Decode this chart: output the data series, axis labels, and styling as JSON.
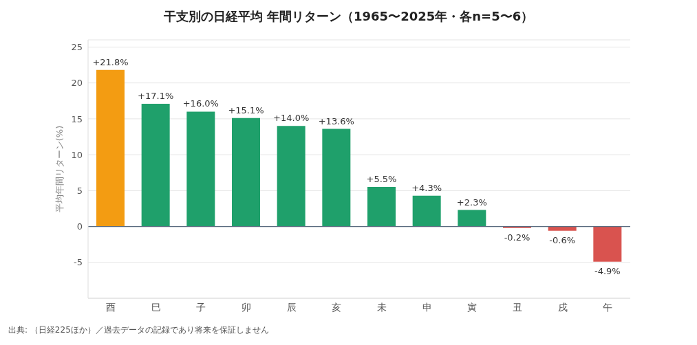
{
  "chart_data": {
    "type": "bar",
    "title": "干支別の日経平均 年間リターン（1965〜2025年・各n=5〜6）",
    "ylabel": "平均年間リターン(%)",
    "annotations": [
      "出典: （日経225ほか）／過去データの記録であり将来を保証しません"
    ],
    "categories": [
      "酉",
      "巳",
      "子",
      "卯",
      "辰",
      "亥",
      "未",
      "申",
      "寅",
      "丑",
      "戌",
      "午"
    ],
    "values": [
      21.8,
      17.1,
      16.0,
      15.1,
      14.0,
      13.6,
      5.5,
      4.3,
      2.3,
      -0.2,
      -0.6,
      -4.9
    ],
    "colors": [
      "#f39c12",
      "#1fa06b",
      "#1fa06b",
      "#1fa06b",
      "#1fa06b",
      "#1fa06b",
      "#1fa06b",
      "#1fa06b",
      "#1fa06b",
      "#d9534f",
      "#d9534f",
      "#d9534f"
    ],
    "value_labels": [
      "+21.8%",
      "+17.1%",
      "+16.0%",
      "+15.1%",
      "+14.0%",
      "+13.6%",
      "+5.5%",
      "+4.3%",
      "+2.3%",
      "-0.2%",
      "-0.6%",
      "-4.9%"
    ],
    "ylim": [
      -10,
      26
    ],
    "yticks": [
      -5,
      0,
      5,
      10,
      15,
      20,
      25
    ],
    "grid": "y",
    "ref_lines": [
      {
        "axis": "y",
        "value": 0,
        "color": "#5a6b7f"
      }
    ]
  }
}
